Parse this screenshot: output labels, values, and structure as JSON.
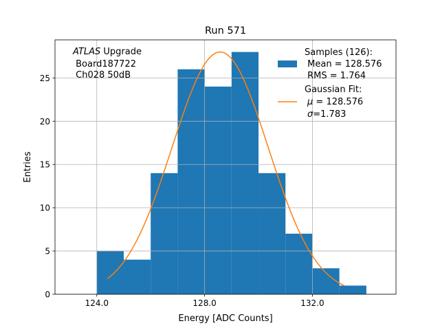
{
  "chart_data": {
    "type": "bar",
    "title": "Run 571",
    "xlabel": "Energy [ADC Counts]",
    "ylabel": "Entries",
    "xlim": [
      122.45,
      135.1
    ],
    "ylim": [
      0,
      29.4
    ],
    "grid": true,
    "legend_placement": "top-right",
    "x_ticks": [
      124.0,
      128.0,
      132.0
    ],
    "x_tick_labels": [
      "124.0",
      "128.0",
      "132.0"
    ],
    "y_ticks": [
      0,
      5,
      10,
      15,
      20,
      25
    ],
    "y_tick_labels": [
      "0",
      "5",
      "10",
      "15",
      "20",
      "25"
    ],
    "annotation": {
      "italic": "ATLAS",
      "line1_rest": " Upgrade",
      "line2": " Board187722",
      "line3": " Ch028 50dB"
    },
    "histogram": {
      "bin_edges": [
        124.0,
        125.0,
        126.0,
        127.0,
        128.0,
        129.0,
        130.0,
        131.0,
        132.0,
        133.0,
        134.0
      ],
      "counts": [
        5,
        4,
        14,
        26,
        24,
        28,
        14,
        7,
        3,
        1
      ],
      "color": "#1f77b4"
    },
    "fit": {
      "mu": 128.576,
      "sigma": 1.783,
      "amplitude": 28.0,
      "x_range": [
        124.4,
        133.2
      ],
      "color": "#ff7f0e"
    },
    "legend": {
      "samples_line1": "Samples (126):",
      "samples_line2": " Mean = 128.576",
      "samples_line3": " RMS = 1.764",
      "fit_line1": "Gaussian Fit:",
      "fit_mu_symbol": "μ",
      "fit_mu_rest": " = 128.576",
      "fit_sigma_symbol": "σ",
      "fit_sigma_rest": "=1.783"
    }
  }
}
